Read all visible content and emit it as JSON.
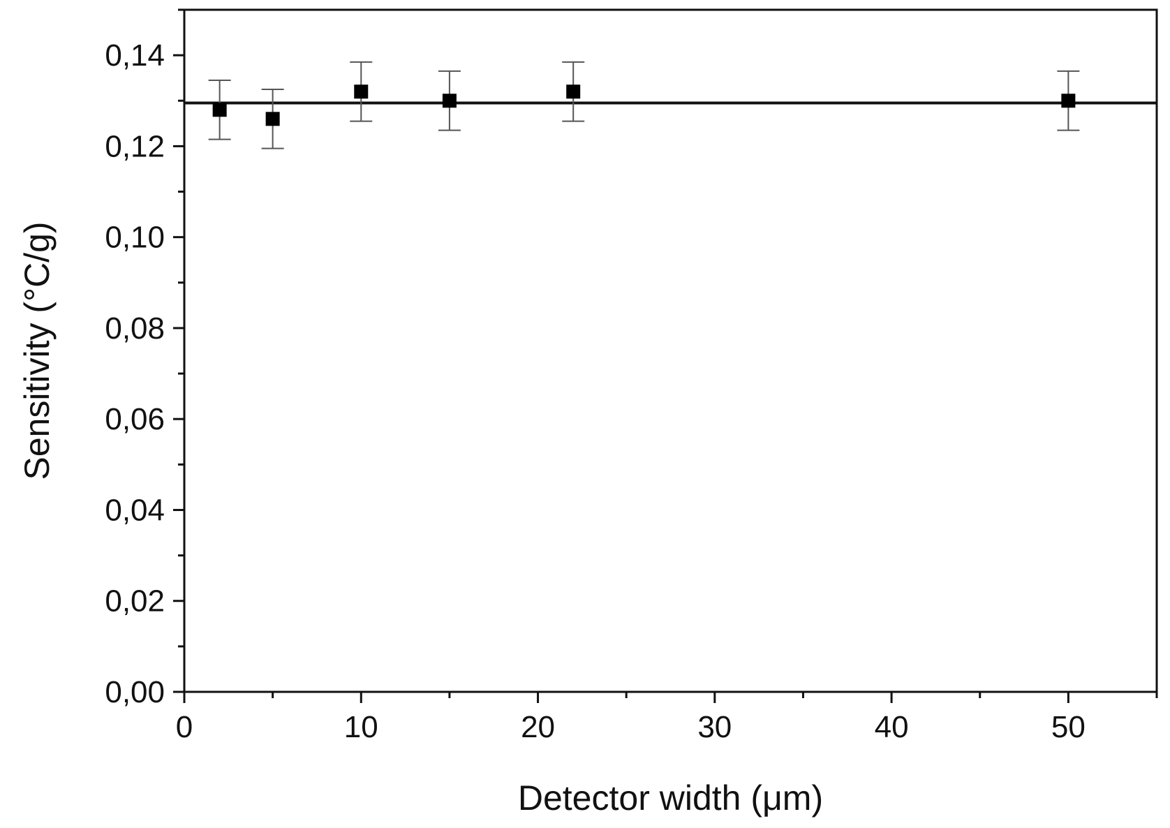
{
  "chart_data": {
    "type": "scatter",
    "title": "",
    "xlabel": "Detector width (μm)",
    "ylabel": "Sensitivity (°C/g)",
    "xlim": [
      0,
      55
    ],
    "ylim": [
      0,
      0.15
    ],
    "x_ticks": [
      0,
      10,
      20,
      30,
      40,
      50
    ],
    "x_tick_labels": [
      "0",
      "10",
      "20",
      "30",
      "40",
      "50"
    ],
    "y_ticks": [
      0,
      0.02,
      0.04,
      0.06,
      0.08,
      0.1,
      0.12,
      0.14
    ],
    "y_tick_labels": [
      "0,00",
      "0,02",
      "0,04",
      "0,06",
      "0,08",
      "0,10",
      "0,12",
      "0,14"
    ],
    "x_minor_step": 5,
    "y_minor_step": 0.01,
    "grid": false,
    "legend": "none",
    "series": [
      {
        "marker": "square",
        "x": [
          2,
          5,
          10,
          15,
          22,
          50
        ],
        "y": [
          0.128,
          0.126,
          0.132,
          0.13,
          0.132,
          0.13
        ],
        "error": [
          0.0065,
          0.0065,
          0.0065,
          0.0065,
          0.0065,
          0.0065
        ]
      }
    ],
    "reference_line": {
      "y": 0.1295
    },
    "colors": {
      "marker": "#000000",
      "error_bar": "#555555",
      "axis": "#111111",
      "reference_line": "#111111"
    }
  }
}
